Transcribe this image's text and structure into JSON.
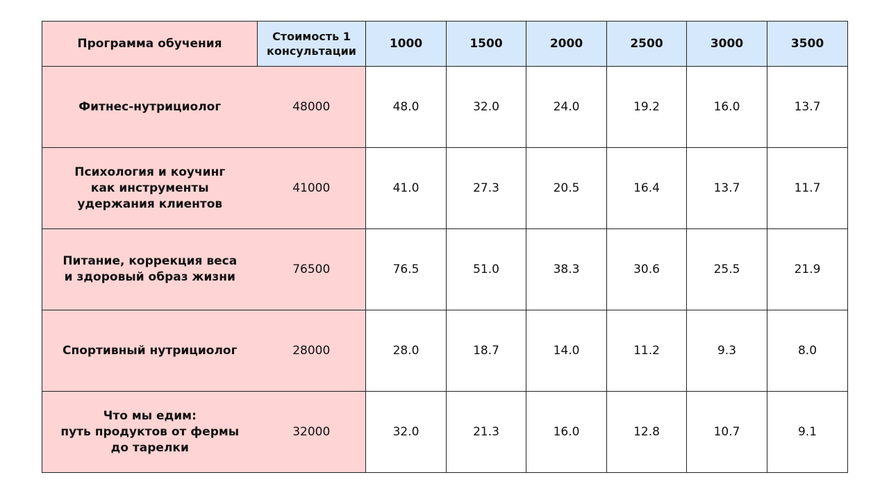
{
  "table": {
    "header": {
      "program": "Программа обучения",
      "cost": "Стоимость 1\nконсультации",
      "prices": [
        "1000",
        "1500",
        "2000",
        "2500",
        "3000",
        "3500"
      ]
    },
    "rows": [
      {
        "program": "Фитнес-нутрициолог",
        "cost": "48000",
        "values": [
          "48.0",
          "32.0",
          "24.0",
          "19.2",
          "16.0",
          "13.7"
        ]
      },
      {
        "program": "Психология и коучинг\nкак инструменты\nудержания клиентов",
        "cost": "41000",
        "values": [
          "41.0",
          "27.3",
          "20.5",
          "16.4",
          "13.7",
          "11.7"
        ]
      },
      {
        "program": "Питание, коррекция веса\nи здоровый образ жизни",
        "cost": "76500",
        "values": [
          "76.5",
          "51.0",
          "38.3",
          "30.6",
          "25.5",
          "21.9"
        ]
      },
      {
        "program": "Спортивный нутрициолог",
        "cost": "28000",
        "values": [
          "28.0",
          "18.7",
          "14.0",
          "11.2",
          "9.3",
          "8.0"
        ]
      },
      {
        "program": "Что мы едим:\nпуть продуктов от фермы\nдо тарелки",
        "cost": "32000",
        "values": [
          "32.0",
          "21.3",
          "16.0",
          "12.8",
          "10.7",
          "9.1"
        ]
      }
    ]
  },
  "colors": {
    "program_bg": "#ffd4d4",
    "header_blue": "#d6e8fb",
    "border": "#222222"
  }
}
